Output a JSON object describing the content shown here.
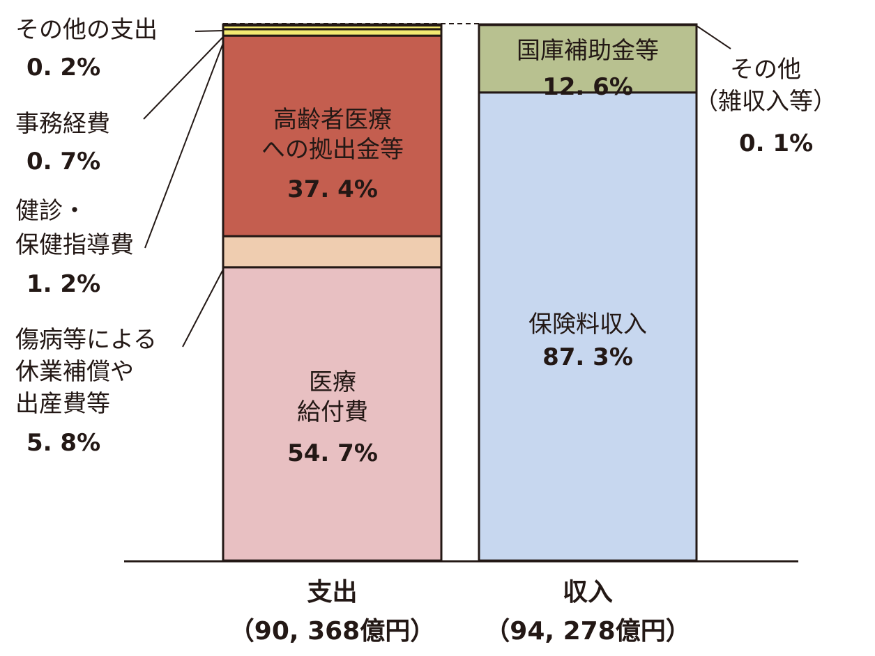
{
  "chart_data": {
    "type": "bar",
    "stacked": true,
    "normalized": true,
    "unit": "%",
    "categories": [
      {
        "label": "支出",
        "total": "（90, 368億円）"
      },
      {
        "label": "収入",
        "total": "（94, 278億円）"
      }
    ],
    "bars": [
      {
        "category": "支出",
        "segments": [
          {
            "name": "医療給付費",
            "lines": [
              "医療",
              "給付費"
            ],
            "value": 54.7,
            "value_label": "54. 7%",
            "color": "#e8c0c2",
            "label_position": "inside"
          },
          {
            "name": "傷病等による休業補償や出産費等",
            "lines": [
              "傷病等による",
              "休業補償や",
              "出産費等"
            ],
            "value": 5.8,
            "value_label": "5. 8%",
            "color": "#efcdb0",
            "label_position": "outside"
          },
          {
            "name": "高齢者医療への拠出金等",
            "lines": [
              "高齢者医療",
              "への拠出金等"
            ],
            "value": 37.4,
            "value_label": "37. 4%",
            "color": "#c45e4f",
            "label_position": "inside"
          },
          {
            "name": "健診・保健指導費",
            "lines": [
              "健診・",
              "保健指導費"
            ],
            "value": 1.2,
            "value_label": "1. 2%",
            "color": "#f3ea72",
            "label_position": "outside"
          },
          {
            "name": "事務経費",
            "lines": [
              "事務経費"
            ],
            "value": 0.7,
            "value_label": "0. 7%",
            "color": "#f3ea72",
            "label_position": "outside"
          },
          {
            "name": "その他の支出",
            "lines": [
              "その他の支出"
            ],
            "value": 0.2,
            "value_label": "0. 2%",
            "color": "#c0806a",
            "label_position": "outside"
          }
        ]
      },
      {
        "category": "収入",
        "segments": [
          {
            "name": "保険料収入",
            "lines": [
              "保険料収入"
            ],
            "value": 87.3,
            "value_label": "87. 3%",
            "color": "#c7d7ef",
            "label_position": "inside"
          },
          {
            "name": "国庫補助金等",
            "lines": [
              "国庫補助金等"
            ],
            "value": 12.6,
            "value_label": "12. 6%",
            "color": "#b8c190",
            "label_position": "inside"
          },
          {
            "name": "その他（雑収入等）",
            "lines": [
              "その他",
              "（雑収入等）"
            ],
            "value": 0.1,
            "value_label": "0. 1%",
            "color": "#b8c190",
            "label_position": "outside"
          }
        ]
      }
    ],
    "legend": "none",
    "grid": false
  }
}
